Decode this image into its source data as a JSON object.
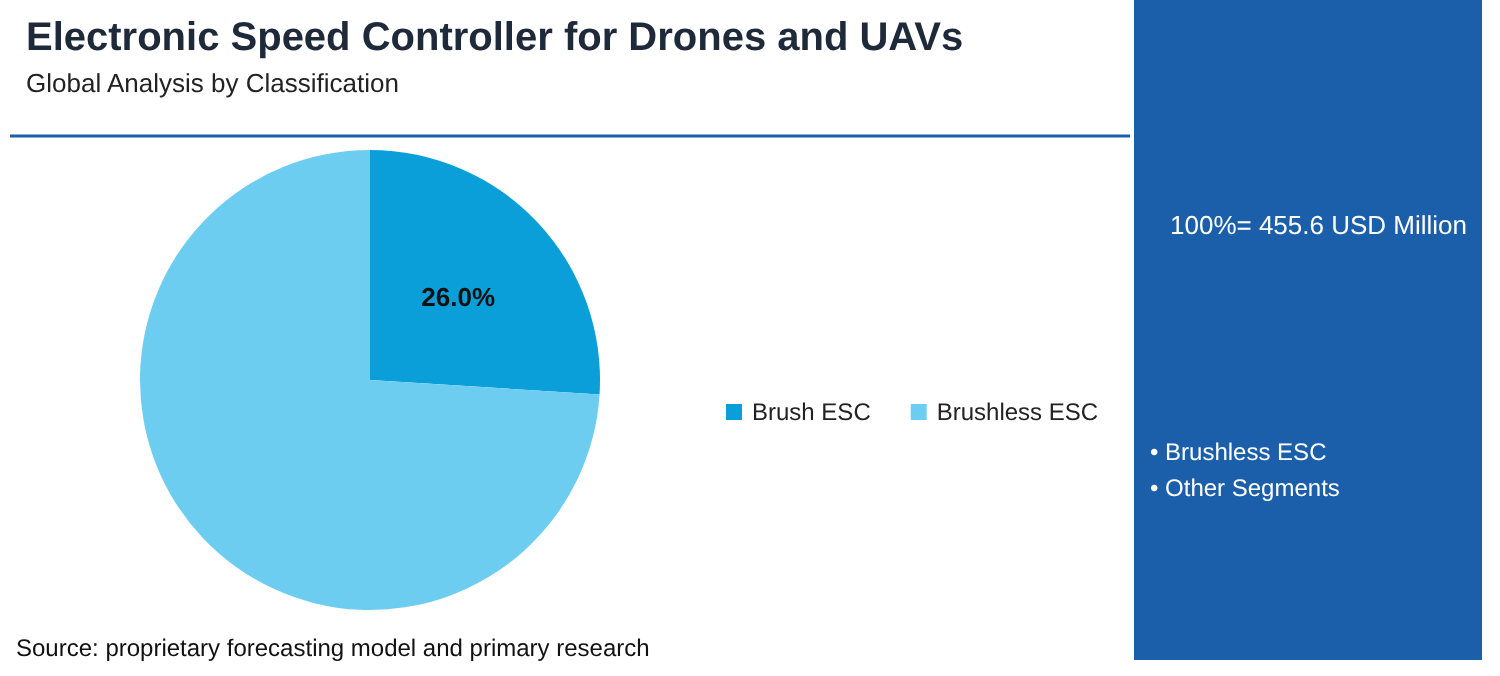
{
  "chart_data": {
    "type": "pie",
    "title": "Electronic Speed Controller for Drones and UAVs",
    "subtitle": "Global Analysis by Classification",
    "categories": [
      "Brush ESC",
      "Brushless ESC"
    ],
    "values": [
      26.0,
      74.0
    ],
    "colors": [
      "#0a9fd8",
      "#6dcdf1"
    ],
    "value_labels": [
      "26.0%",
      null
    ],
    "legend": "right",
    "annotations": [
      "Source: proprietary forecasting model and primary research",
      "100%= 455.6 USD Million",
      "• Brushless ESC",
      "• Other Segments"
    ]
  }
}
